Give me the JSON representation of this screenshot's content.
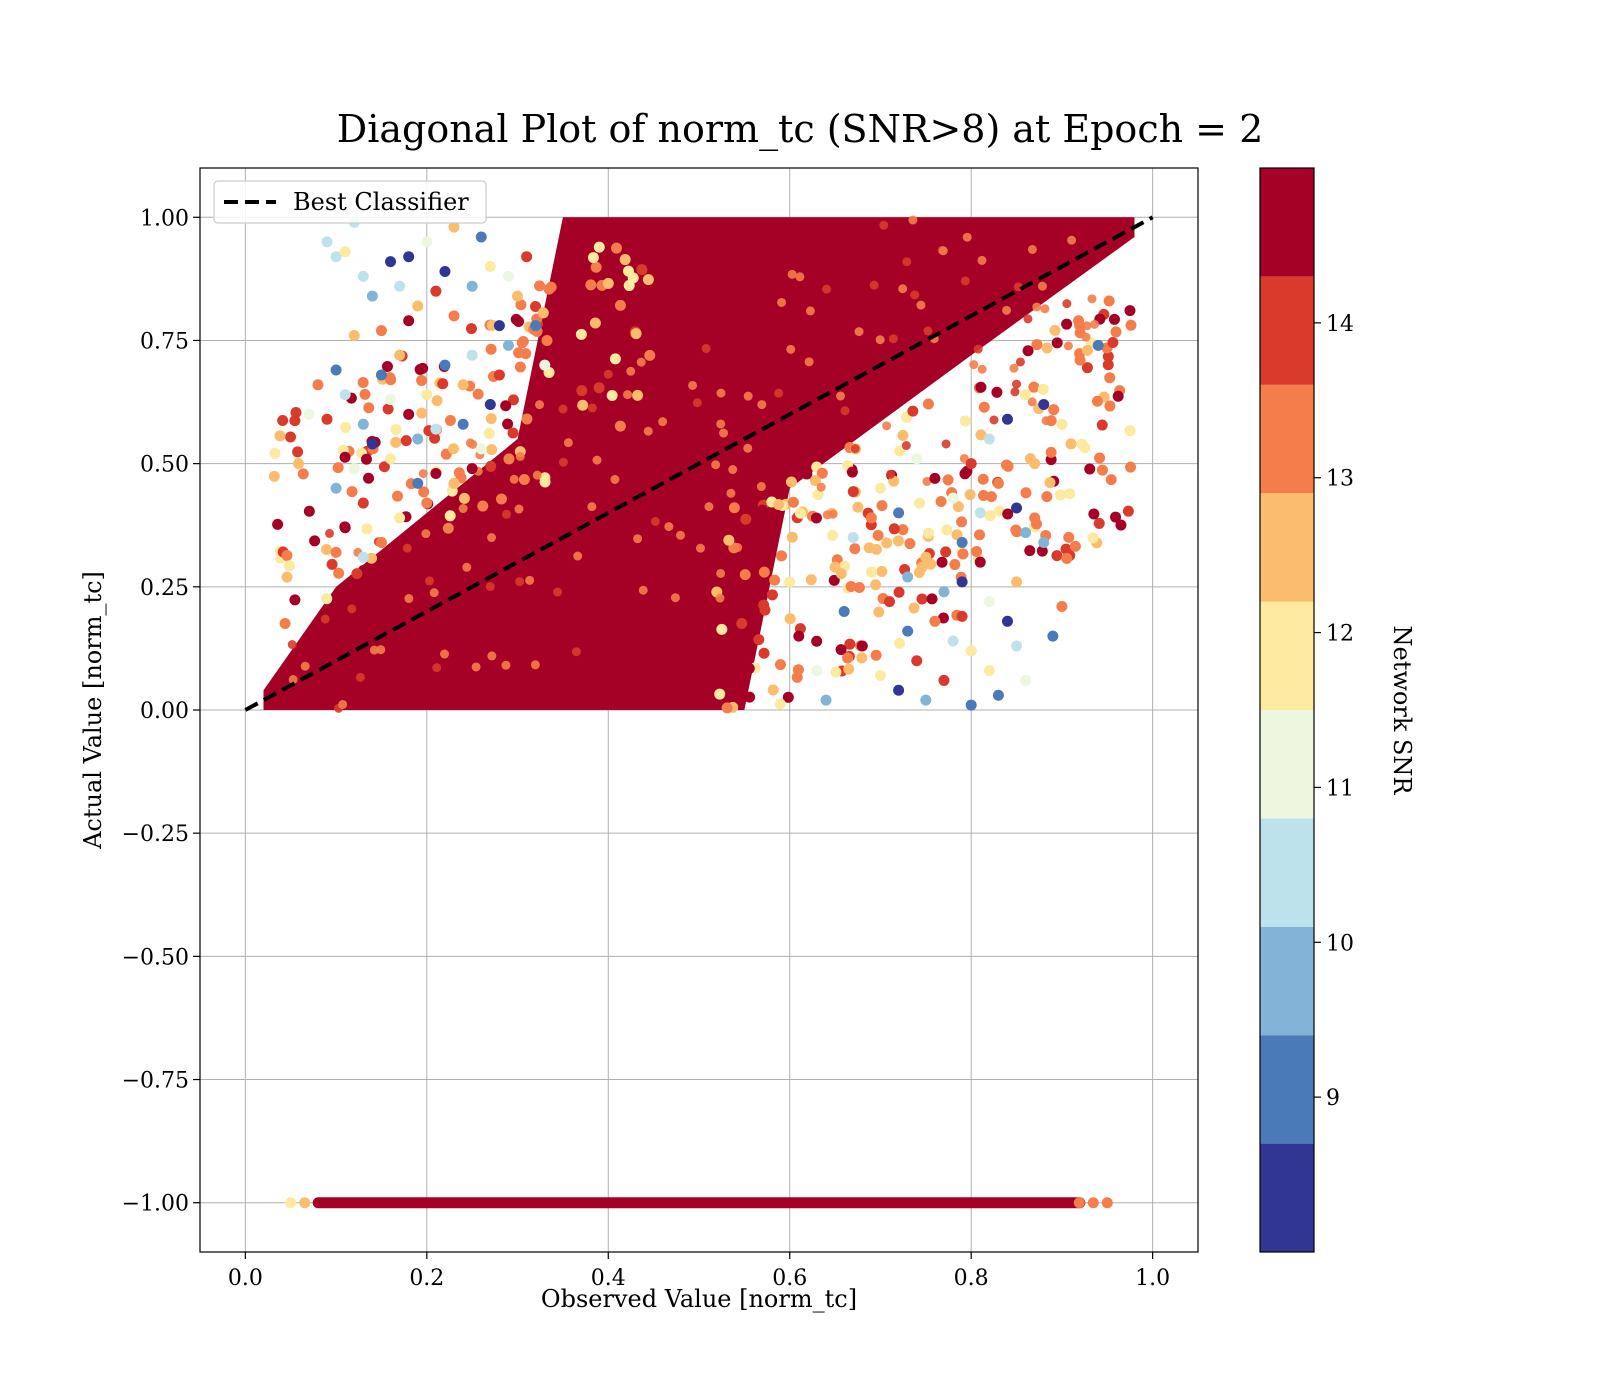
{
  "chart_data": {
    "type": "scatter",
    "title": "Diagonal Plot of norm_tc (SNR>8) at Epoch = 2",
    "xlabel": "Observed Value [norm_tc]",
    "ylabel": "Actual Value [norm_tc]",
    "xlim": [
      -0.05,
      1.05
    ],
    "ylim": [
      -1.1,
      1.1
    ],
    "x_ticks": [
      0.0,
      0.2,
      0.4,
      0.6,
      0.8,
      1.0
    ],
    "x_tick_labels": [
      "0.0",
      "0.2",
      "0.4",
      "0.6",
      "0.8",
      "1.0"
    ],
    "y_ticks": [
      1.0,
      0.75,
      0.5,
      0.25,
      0.0,
      -0.25,
      -0.5,
      -0.75,
      -1.0
    ],
    "y_tick_labels": [
      "1.00",
      "0.75",
      "0.50",
      "0.25",
      "0.00",
      "−0.25",
      "−0.50",
      "−0.75",
      "−1.00"
    ],
    "grid": true,
    "legend": {
      "position": "top-left",
      "entries": [
        {
          "label": "Best Classifier",
          "style": "dashed",
          "color": "#000000"
        }
      ]
    },
    "reference_line": {
      "name": "Best Classifier",
      "x": [
        0.0,
        1.0
      ],
      "y": [
        0.0,
        1.0
      ]
    },
    "colorbar": {
      "label": "Network SNR",
      "range": [
        8.0,
        15.0
      ],
      "ticks": [
        9,
        10,
        11,
        12,
        13,
        14
      ],
      "tick_labels": [
        "9",
        "10",
        "11",
        "12",
        "13",
        "14"
      ],
      "bins": [
        {
          "from": 8.0,
          "to": 8.7,
          "color": "#313695"
        },
        {
          "from": 8.7,
          "to": 9.4,
          "color": "#4a7ab7"
        },
        {
          "from": 9.4,
          "to": 10.1,
          "color": "#81b4d6"
        },
        {
          "from": 10.1,
          "to": 10.8,
          "color": "#bde2ec"
        },
        {
          "from": 10.8,
          "to": 11.5,
          "color": "#edf6df"
        },
        {
          "from": 11.5,
          "to": 12.2,
          "color": "#fde99f"
        },
        {
          "from": 12.2,
          "to": 12.9,
          "color": "#fbbd6d"
        },
        {
          "from": 12.9,
          "to": 13.6,
          "color": "#f47d4b"
        },
        {
          "from": 13.6,
          "to": 14.3,
          "color": "#d93a2b"
        },
        {
          "from": 14.3,
          "to": 15.0,
          "color": "#a50026"
        }
      ]
    },
    "point_groups": [
      {
        "description_of_region": "dense core along diagonal",
        "polygon": [
          [
            0.02,
            0.0
          ],
          [
            0.02,
            0.04
          ],
          [
            0.1,
            0.25
          ],
          [
            0.3,
            0.55
          ],
          [
            0.35,
            1.0
          ],
          [
            0.98,
            1.0
          ],
          [
            0.98,
            0.96
          ],
          [
            0.8,
            0.72
          ],
          [
            0.6,
            0.45
          ],
          [
            0.55,
            0.0
          ]
        ],
        "snr": 14.6
      }
    ],
    "points": [
      {
        "x": 0.09,
        "y": 0.95,
        "snr": 10.3
      },
      {
        "x": 0.1,
        "y": 0.92,
        "snr": 10.6
      },
      {
        "x": 0.11,
        "y": 0.93,
        "snr": 11.8
      },
      {
        "x": 0.12,
        "y": 0.99,
        "snr": 10.6
      },
      {
        "x": 0.13,
        "y": 0.88,
        "snr": 10.2
      },
      {
        "x": 0.14,
        "y": 0.84,
        "snr": 9.8
      },
      {
        "x": 0.16,
        "y": 0.91,
        "snr": 8.3
      },
      {
        "x": 0.17,
        "y": 0.86,
        "snr": 10.1
      },
      {
        "x": 0.19,
        "y": 0.82,
        "snr": 12.5
      },
      {
        "x": 0.2,
        "y": 0.95,
        "snr": 11.2
      },
      {
        "x": 0.22,
        "y": 0.89,
        "snr": 8.4
      },
      {
        "x": 0.23,
        "y": 0.8,
        "snr": 13.2
      },
      {
        "x": 0.25,
        "y": 0.86,
        "snr": 9.6
      },
      {
        "x": 0.27,
        "y": 0.9,
        "snr": 12.1
      },
      {
        "x": 0.28,
        "y": 0.78,
        "snr": 8.5
      },
      {
        "x": 0.18,
        "y": 0.79,
        "snr": 14.5
      },
      {
        "x": 0.15,
        "y": 0.77,
        "snr": 13.1
      },
      {
        "x": 0.12,
        "y": 0.76,
        "snr": 12.4
      },
      {
        "x": 0.1,
        "y": 0.69,
        "snr": 9.2
      },
      {
        "x": 0.11,
        "y": 0.64,
        "snr": 10.4
      },
      {
        "x": 0.08,
        "y": 0.66,
        "snr": 13.4
      },
      {
        "x": 0.07,
        "y": 0.6,
        "snr": 11.3
      },
      {
        "x": 0.09,
        "y": 0.59,
        "snr": 14.0
      },
      {
        "x": 0.1,
        "y": 0.45,
        "snr": 9.4
      },
      {
        "x": 0.12,
        "y": 0.49,
        "snr": 10.9
      },
      {
        "x": 0.13,
        "y": 0.42,
        "snr": 13.9
      },
      {
        "x": 0.14,
        "y": 0.54,
        "snr": 8.6
      },
      {
        "x": 0.16,
        "y": 0.51,
        "snr": 12.0
      },
      {
        "x": 0.18,
        "y": 0.6,
        "snr": 14.6
      },
      {
        "x": 0.19,
        "y": 0.55,
        "snr": 9.7
      },
      {
        "x": 0.2,
        "y": 0.64,
        "snr": 11.6
      },
      {
        "x": 0.21,
        "y": 0.48,
        "snr": 14.4
      },
      {
        "x": 0.22,
        "y": 0.7,
        "snr": 8.8
      },
      {
        "x": 0.24,
        "y": 0.66,
        "snr": 12.8
      },
      {
        "x": 0.25,
        "y": 0.72,
        "snr": 10.5
      },
      {
        "x": 0.27,
        "y": 0.62,
        "snr": 8.2
      },
      {
        "x": 0.15,
        "y": 0.68,
        "snr": 9.3
      },
      {
        "x": 0.17,
        "y": 0.72,
        "snr": 12.2
      },
      {
        "x": 0.2,
        "y": 0.42,
        "snr": 13.0
      },
      {
        "x": 0.17,
        "y": 0.39,
        "snr": 11.9
      },
      {
        "x": 0.11,
        "y": 0.37,
        "snr": 14.6
      },
      {
        "x": 0.13,
        "y": 0.31,
        "snr": 10.7
      },
      {
        "x": 0.15,
        "y": 0.34,
        "snr": 12.9
      },
      {
        "x": 0.1,
        "y": 0.32,
        "snr": 13.5
      },
      {
        "x": 0.24,
        "y": 0.58,
        "snr": 9.0
      },
      {
        "x": 0.26,
        "y": 0.53,
        "snr": 11.0
      },
      {
        "x": 0.28,
        "y": 0.68,
        "snr": 13.7
      },
      {
        "x": 0.29,
        "y": 0.74,
        "snr": 10.0
      },
      {
        "x": 0.3,
        "y": 0.84,
        "snr": 12.6
      },
      {
        "x": 0.31,
        "y": 0.92,
        "snr": 14.2
      },
      {
        "x": 0.32,
        "y": 0.78,
        "snr": 8.9
      },
      {
        "x": 0.33,
        "y": 0.7,
        "snr": 11.4
      },
      {
        "x": 0.26,
        "y": 0.96,
        "snr": 9.1
      },
      {
        "x": 0.29,
        "y": 0.88,
        "snr": 10.8
      },
      {
        "x": 0.23,
        "y": 0.98,
        "snr": 12.7
      },
      {
        "x": 0.21,
        "y": 0.57,
        "snr": 10.2
      },
      {
        "x": 0.19,
        "y": 0.46,
        "snr": 8.7
      },
      {
        "x": 0.23,
        "y": 0.46,
        "snr": 12.3
      },
      {
        "x": 0.25,
        "y": 0.49,
        "snr": 14.5
      },
      {
        "x": 0.16,
        "y": 0.63,
        "snr": 11.1
      },
      {
        "x": 0.13,
        "y": 0.58,
        "snr": 9.9
      },
      {
        "x": 0.18,
        "y": 0.92,
        "snr": 8.1
      },
      {
        "x": 0.21,
        "y": 0.85,
        "snr": 14.0
      },
      {
        "x": 0.85,
        "y": 0.41,
        "snr": 8.4
      },
      {
        "x": 0.86,
        "y": 0.36,
        "snr": 9.5
      },
      {
        "x": 0.88,
        "y": 0.34,
        "snr": 9.9
      },
      {
        "x": 0.87,
        "y": 0.39,
        "snr": 13.3
      },
      {
        "x": 0.9,
        "y": 0.21,
        "snr": 13.1
      },
      {
        "x": 0.89,
        "y": 0.15,
        "snr": 8.9
      },
      {
        "x": 0.85,
        "y": 0.13,
        "snr": 10.1
      },
      {
        "x": 0.86,
        "y": 0.06,
        "snr": 11.0
      },
      {
        "x": 0.83,
        "y": 0.03,
        "snr": 8.8
      },
      {
        "x": 0.84,
        "y": 0.18,
        "snr": 8.3
      },
      {
        "x": 0.82,
        "y": 0.08,
        "snr": 12.0
      },
      {
        "x": 0.8,
        "y": 0.01,
        "snr": 9.1
      },
      {
        "x": 0.81,
        "y": 0.3,
        "snr": 14.6
      },
      {
        "x": 0.79,
        "y": 0.34,
        "snr": 9.3
      },
      {
        "x": 0.78,
        "y": 0.43,
        "snr": 11.3
      },
      {
        "x": 0.8,
        "y": 0.5,
        "snr": 13.9
      },
      {
        "x": 0.82,
        "y": 0.55,
        "snr": 10.3
      },
      {
        "x": 0.84,
        "y": 0.59,
        "snr": 8.6
      },
      {
        "x": 0.86,
        "y": 0.64,
        "snr": 12.1
      },
      {
        "x": 0.88,
        "y": 0.62,
        "snr": 8.5
      },
      {
        "x": 0.9,
        "y": 0.58,
        "snr": 11.8
      },
      {
        "x": 0.91,
        "y": 0.54,
        "snr": 12.2
      },
      {
        "x": 0.92,
        "y": 0.71,
        "snr": 13.3
      },
      {
        "x": 0.94,
        "y": 0.74,
        "snr": 9.1
      },
      {
        "x": 0.76,
        "y": 0.47,
        "snr": 14.3
      },
      {
        "x": 0.74,
        "y": 0.51,
        "snr": 10.8
      },
      {
        "x": 0.72,
        "y": 0.4,
        "snr": 8.7
      },
      {
        "x": 0.75,
        "y": 0.31,
        "snr": 12.6
      },
      {
        "x": 0.73,
        "y": 0.27,
        "snr": 10.0
      },
      {
        "x": 0.71,
        "y": 0.22,
        "snr": 14.0
      },
      {
        "x": 0.77,
        "y": 0.24,
        "snr": 9.6
      },
      {
        "x": 0.76,
        "y": 0.18,
        "snr": 12.9
      },
      {
        "x": 0.78,
        "y": 0.14,
        "snr": 10.6
      },
      {
        "x": 0.74,
        "y": 0.1,
        "snr": 13.6
      },
      {
        "x": 0.72,
        "y": 0.04,
        "snr": 8.2
      },
      {
        "x": 0.7,
        "y": 0.07,
        "snr": 11.5
      },
      {
        "x": 0.68,
        "y": 0.13,
        "snr": 14.5
      },
      {
        "x": 0.66,
        "y": 0.2,
        "snr": 9.0
      },
      {
        "x": 0.65,
        "y": 0.29,
        "snr": 12.4
      },
      {
        "x": 0.67,
        "y": 0.35,
        "snr": 10.5
      },
      {
        "x": 0.69,
        "y": 0.39,
        "snr": 13.0
      },
      {
        "x": 0.63,
        "y": 0.08,
        "snr": 11.2
      },
      {
        "x": 0.61,
        "y": 0.15,
        "snr": 14.7
      },
      {
        "x": 0.64,
        "y": 0.02,
        "snr": 9.4
      },
      {
        "x": 0.7,
        "y": 0.45,
        "snr": 12.0
      },
      {
        "x": 0.82,
        "y": 0.22,
        "snr": 10.9
      },
      {
        "x": 0.8,
        "y": 0.12,
        "snr": 11.7
      },
      {
        "x": 0.77,
        "y": 0.06,
        "snr": 13.8
      },
      {
        "x": 0.75,
        "y": 0.02,
        "snr": 9.8
      },
      {
        "x": 0.79,
        "y": 0.26,
        "snr": 8.4
      },
      {
        "x": 0.83,
        "y": 0.46,
        "snr": 13.5
      },
      {
        "x": 0.81,
        "y": 0.4,
        "snr": 10.4
      },
      {
        "x": 0.73,
        "y": 0.16,
        "snr": 9.2
      },
      {
        "x": 0.69,
        "y": 0.28,
        "snr": 11.9
      },
      {
        "x": 0.87,
        "y": 0.5,
        "snr": 12.5
      },
      {
        "x": 0.85,
        "y": 0.26,
        "snr": 12.8
      },
      {
        "x": 0.79,
        "y": 0.19,
        "snr": 14.2
      }
    ],
    "bottom_row": {
      "y": -1.0,
      "x_range": [
        0.05,
        0.95
      ],
      "snr": 14.6
    }
  }
}
